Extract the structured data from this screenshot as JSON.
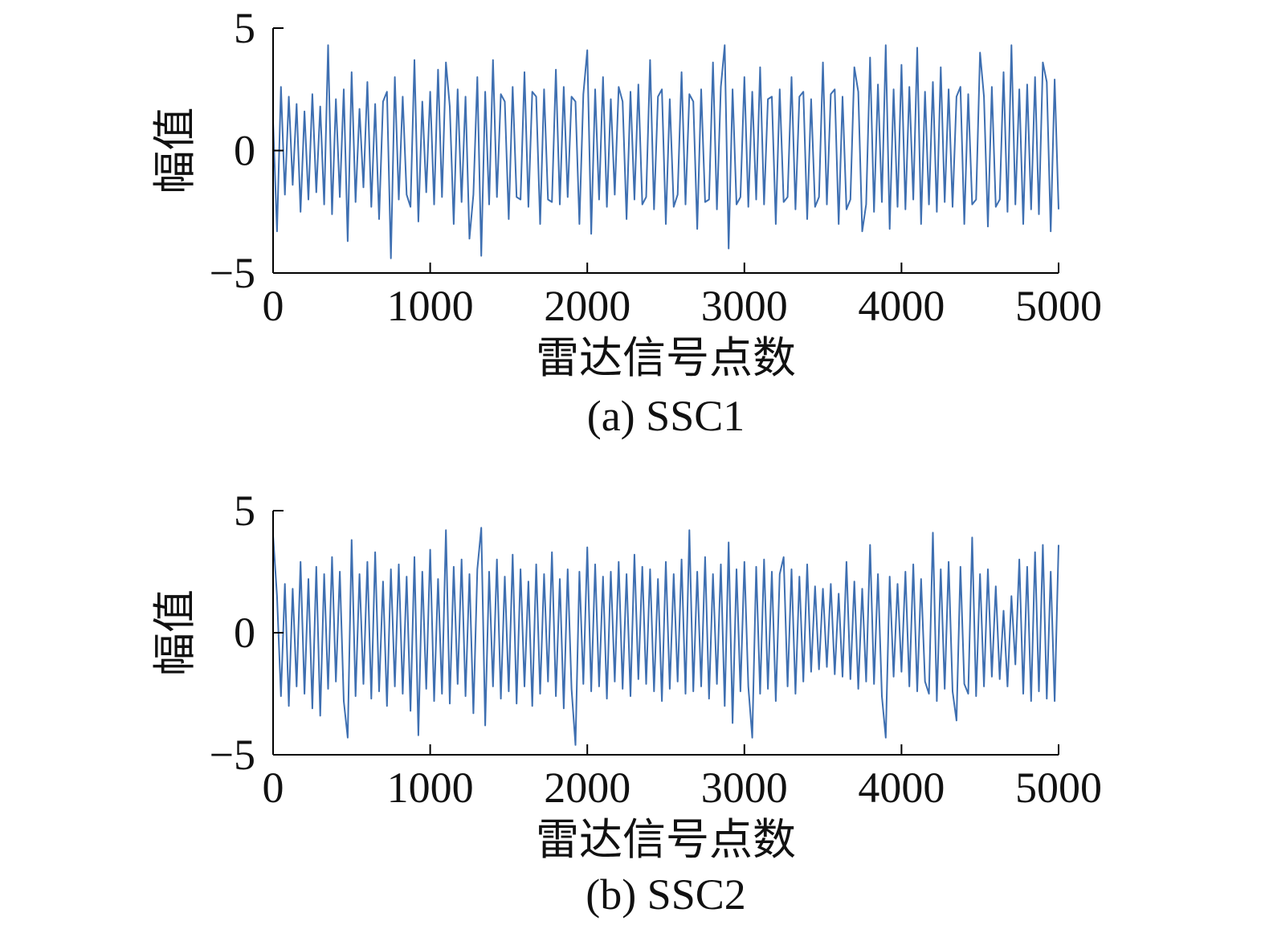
{
  "chart_data": [
    {
      "type": "line",
      "caption": "(a) SSC1",
      "xlabel": "雷达信号点数",
      "ylabel": "幅值",
      "xlim": [
        0,
        5000
      ],
      "ylim": [
        -5,
        5
      ],
      "xticks": [
        0,
        1000,
        2000,
        3000,
        4000,
        5000
      ],
      "xticklabels": [
        "0",
        "1000",
        "2000",
        "3000",
        "4000",
        "5000"
      ],
      "yticks": [
        -5,
        0,
        5
      ],
      "yticklabels": [
        "−5",
        "0",
        "5"
      ],
      "grid": false,
      "color": "#2e63aa",
      "x": [
        0,
        25,
        50,
        75,
        100,
        125,
        150,
        175,
        200,
        225,
        250,
        275,
        300,
        325,
        350,
        375,
        400,
        425,
        450,
        475,
        500,
        525,
        550,
        575,
        600,
        625,
        650,
        675,
        700,
        725,
        750,
        775,
        800,
        825,
        850,
        875,
        900,
        925,
        950,
        975,
        1000,
        1025,
        1050,
        1075,
        1100,
        1125,
        1150,
        1175,
        1200,
        1225,
        1250,
        1275,
        1300,
        1325,
        1350,
        1375,
        1400,
        1425,
        1450,
        1475,
        1500,
        1525,
        1550,
        1575,
        1600,
        1625,
        1650,
        1675,
        1700,
        1725,
        1750,
        1775,
        1800,
        1825,
        1850,
        1875,
        1900,
        1925,
        1950,
        1975,
        2000,
        2025,
        2050,
        2075,
        2100,
        2125,
        2150,
        2175,
        2200,
        2225,
        2250,
        2275,
        2300,
        2325,
        2350,
        2375,
        2400,
        2425,
        2450,
        2475,
        2500,
        2525,
        2550,
        2575,
        2600,
        2625,
        2650,
        2675,
        2700,
        2725,
        2750,
        2775,
        2800,
        2825,
        2850,
        2875,
        2900,
        2925,
        2950,
        2975,
        3000,
        3025,
        3050,
        3075,
        3100,
        3125,
        3150,
        3175,
        3200,
        3225,
        3250,
        3275,
        3300,
        3325,
        3350,
        3375,
        3400,
        3425,
        3450,
        3475,
        3500,
        3525,
        3550,
        3575,
        3600,
        3625,
        3650,
        3675,
        3700,
        3725,
        3750,
        3775,
        3800,
        3825,
        3850,
        3875,
        3900,
        3925,
        3950,
        3975,
        4000,
        4025,
        4050,
        4075,
        4100,
        4125,
        4150,
        4175,
        4200,
        4225,
        4250,
        4275,
        4300,
        4325,
        4350,
        4375,
        4400,
        4425,
        4450,
        4475,
        4500,
        4525,
        4550,
        4575,
        4600,
        4625,
        4650,
        4675,
        4700,
        4725,
        4750,
        4775,
        4800,
        4825,
        4850,
        4875,
        4900,
        4925,
        4950,
        4975,
        5000
      ],
      "series": [
        {
          "values": [
            1.2,
            -3.3,
            2.6,
            -1.8,
            2.2,
            -1.4,
            1.9,
            -2.5,
            1.6,
            -2.0,
            2.3,
            -1.7,
            1.8,
            -2.2,
            4.3,
            -2.6,
            2.1,
            -1.9,
            2.5,
            -3.7,
            3.2,
            -2.1,
            1.7,
            -1.5,
            2.8,
            -2.3,
            1.9,
            -2.8,
            2.0,
            2.4,
            -4.4,
            3.0,
            -2.0,
            2.2,
            -1.8,
            -2.3,
            3.7,
            -2.9,
            2.0,
            -1.7,
            2.4,
            -2.2,
            3.3,
            -1.9,
            3.6,
            1.8,
            -3.0,
            2.5,
            -2.1,
            2.2,
            -3.6,
            -1.8,
            3.0,
            -4.3,
            2.4,
            -2.2,
            3.7,
            -1.9,
            2.3,
            2.0,
            -2.8,
            2.6,
            -1.9,
            -2.0,
            3.2,
            -2.3,
            2.4,
            2.2,
            -3.0,
            2.5,
            -2.0,
            -2.1,
            3.3,
            -2.2,
            2.6,
            -1.9,
            2.2,
            2.0,
            -3.0,
            2.3,
            4.1,
            -3.4,
            2.5,
            -2.0,
            3.0,
            -2.3,
            2.1,
            -1.8,
            2.6,
            2.0,
            -2.8,
            2.4,
            -2.0,
            2.7,
            -2.2,
            -1.9,
            3.7,
            -2.4,
            2.2,
            2.5,
            -3.0,
            2.1,
            -2.3,
            -1.8,
            3.2,
            -2.2,
            2.3,
            2.0,
            -3.2,
            2.5,
            -2.1,
            -2.0,
            3.6,
            -2.4,
            2.6,
            4.3,
            -4.0,
            2.5,
            -2.2,
            -1.9,
            3.0,
            -2.3,
            2.4,
            -2.0,
            3.4,
            -2.2,
            2.1,
            2.2,
            -3.0,
            2.5,
            -2.1,
            -1.9,
            3.0,
            -2.4,
            2.2,
            2.4,
            -2.8,
            2.1,
            -2.3,
            -1.9,
            3.6,
            -2.2,
            2.3,
            2.5,
            -3.0,
            2.2,
            -2.4,
            -2.0,
            3.4,
            2.4,
            -3.3,
            -2.2,
            3.8,
            -2.5,
            2.7,
            -2.1,
            4.3,
            -3.2,
            2.5,
            -2.3,
            3.5,
            -2.4,
            2.6,
            -2.0,
            4.2,
            -3.0,
            2.4,
            -2.2,
            2.8,
            -2.5,
            3.4,
            -2.1,
            2.5,
            -2.3,
            2.2,
            2.6,
            -3.0,
            2.3,
            -2.2,
            -2.0,
            4.0,
            2.2,
            -3.1,
            2.6,
            -2.3,
            -2.0,
            3.2,
            -2.5,
            4.3,
            -2.2,
            2.5,
            -3.0,
            2.7,
            -2.4,
            3.0,
            -2.6,
            3.6,
            2.8,
            -3.3,
            2.9,
            -2.4
          ]
        }
      ]
    },
    {
      "type": "line",
      "caption": "(b) SSC2",
      "xlabel": "雷达信号点数",
      "ylabel": "幅值",
      "xlim": [
        0,
        5000
      ],
      "ylim": [
        -5,
        5
      ],
      "xticks": [
        0,
        1000,
        2000,
        3000,
        4000,
        5000
      ],
      "xticklabels": [
        "0",
        "1000",
        "2000",
        "3000",
        "4000",
        "5000"
      ],
      "yticks": [
        -5,
        0,
        5
      ],
      "yticklabels": [
        "−5",
        "0",
        "5"
      ],
      "grid": false,
      "color": "#2e63aa",
      "x": [
        0,
        25,
        50,
        75,
        100,
        125,
        150,
        175,
        200,
        225,
        250,
        275,
        300,
        325,
        350,
        375,
        400,
        425,
        450,
        475,
        500,
        525,
        550,
        575,
        600,
        625,
        650,
        675,
        700,
        725,
        750,
        775,
        800,
        825,
        850,
        875,
        900,
        925,
        950,
        975,
        1000,
        1025,
        1050,
        1075,
        1100,
        1125,
        1150,
        1175,
        1200,
        1225,
        1250,
        1275,
        1300,
        1325,
        1350,
        1375,
        1400,
        1425,
        1450,
        1475,
        1500,
        1525,
        1550,
        1575,
        1600,
        1625,
        1650,
        1675,
        1700,
        1725,
        1750,
        1775,
        1800,
        1825,
        1850,
        1875,
        1900,
        1925,
        1950,
        1975,
        2000,
        2025,
        2050,
        2075,
        2100,
        2125,
        2150,
        2175,
        2200,
        2225,
        2250,
        2275,
        2300,
        2325,
        2350,
        2375,
        2400,
        2425,
        2450,
        2475,
        2500,
        2525,
        2550,
        2575,
        2600,
        2625,
        2650,
        2675,
        2700,
        2725,
        2750,
        2775,
        2800,
        2825,
        2850,
        2875,
        2900,
        2925,
        2950,
        2975,
        3000,
        3025,
        3050,
        3075,
        3100,
        3125,
        3150,
        3175,
        3200,
        3225,
        3250,
        3275,
        3300,
        3325,
        3350,
        3375,
        3400,
        3425,
        3450,
        3475,
        3500,
        3525,
        3550,
        3575,
        3600,
        3625,
        3650,
        3675,
        3700,
        3725,
        3750,
        3775,
        3800,
        3825,
        3850,
        3875,
        3900,
        3925,
        3950,
        3975,
        4000,
        4025,
        4050,
        4075,
        4100,
        4125,
        4150,
        4175,
        4200,
        4225,
        4250,
        4275,
        4300,
        4325,
        4350,
        4375,
        4400,
        4425,
        4450,
        4475,
        4500,
        4525,
        4550,
        4575,
        4600,
        4625,
        4650,
        4675,
        4700,
        4725,
        4750,
        4775,
        4800,
        4825,
        4850,
        4875,
        4900,
        4925,
        4950,
        4975,
        5000
      ],
      "series": [
        {
          "values": [
            4.0,
            1.5,
            -2.6,
            2.0,
            -3.0,
            1.8,
            -2.2,
            2.9,
            -2.5,
            2.2,
            -3.1,
            2.7,
            -3.4,
            2.4,
            -2.3,
            3.1,
            -2.0,
            2.5,
            -2.8,
            -4.3,
            3.8,
            -2.6,
            2.4,
            -2.1,
            2.9,
            -2.7,
            3.3,
            -2.4,
            2.1,
            -3.0,
            2.6,
            -2.2,
            2.8,
            -2.5,
            2.3,
            -3.2,
            3.1,
            -4.2,
            2.5,
            -2.3,
            3.4,
            -2.8,
            2.2,
            -2.5,
            4.2,
            -2.9,
            2.7,
            -2.1,
            3.0,
            -2.6,
            2.4,
            -3.3,
            2.6,
            4.3,
            -3.8,
            2.5,
            -2.2,
            3.0,
            -2.7,
            2.3,
            -2.4,
            3.2,
            -2.9,
            2.6,
            -2.2,
            2.1,
            -3.0,
            2.8,
            -2.5,
            2.4,
            -2.0,
            3.3,
            -2.6,
            2.2,
            -3.1,
            2.6,
            -2.3,
            -4.6,
            2.5,
            -2.1,
            3.5,
            -2.4,
            2.8,
            -2.2,
            2.3,
            -2.7,
            2.5,
            -2.0,
            2.9,
            -2.3,
            2.4,
            -2.6,
            3.2,
            -1.9,
            2.7,
            -2.1,
            2.6,
            -2.4,
            2.2,
            -2.8,
            2.9,
            -2.3,
            2.4,
            -2.0,
            3.0,
            -2.5,
            4.2,
            -2.4,
            2.5,
            -2.2,
            3.1,
            -2.7,
            2.4,
            -2.1,
            2.8,
            -3.0,
            3.7,
            -3.7,
            2.6,
            -2.4,
            2.9,
            -2.2,
            -4.3,
            2.7,
            -2.5,
            3.0,
            -2.3,
            2.5,
            -2.8,
            2.4,
            3.1,
            -2.2,
            2.6,
            -2.5,
            2.3,
            -2.0,
            2.8,
            -1.6,
            1.9,
            -1.5,
            1.8,
            -1.4,
            2.0,
            -1.7,
            1.6,
            -1.8,
            2.9,
            -1.9,
            2.1,
            -2.3,
            1.8,
            -2.0,
            3.6,
            -2.1,
            2.4,
            -2.6,
            -4.3,
            2.3,
            -1.8,
            2.0,
            -1.6,
            2.5,
            -2.2,
            2.8,
            -2.4,
            2.2,
            -2.0,
            -2.5,
            4.1,
            -2.8,
            2.6,
            -2.3,
            2.9,
            -2.4,
            -3.6,
            2.7,
            -2.1,
            -2.5,
            3.9,
            -2.6,
            2.4,
            -2.2,
            2.6,
            -1.8,
            1.9,
            -1.9,
            0.9,
            -2.2,
            1.5,
            -1.3,
            3.0,
            -2.5,
            2.7,
            -2.8,
            3.3,
            -2.4,
            3.6,
            -2.7,
            2.5,
            -2.8,
            3.6
          ]
        }
      ]
    }
  ]
}
